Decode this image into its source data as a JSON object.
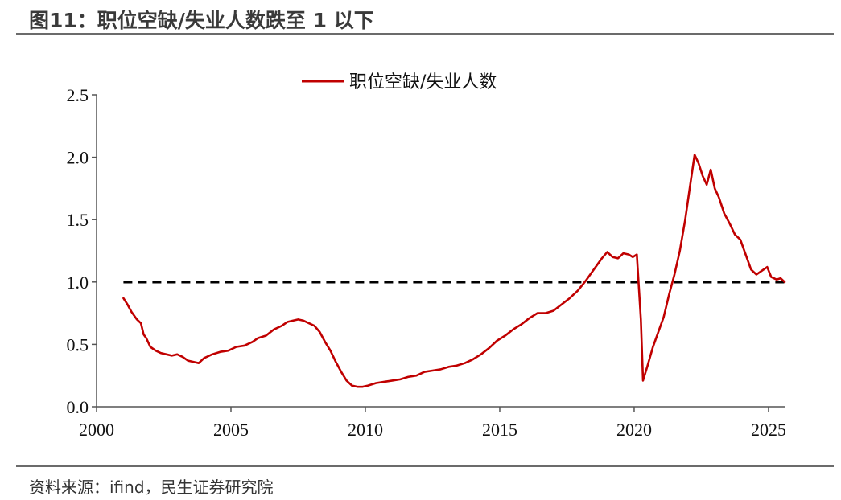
{
  "figure_title": "图11：职位空缺/失业人数跌至 1 以下",
  "source_note": "资料来源：ifind，民生证券研究院",
  "colors": {
    "series": "#c00000",
    "reference": "#000000",
    "axis": "#555555",
    "rule": "#6b6b6b"
  },
  "chart_data": {
    "type": "line",
    "title": "",
    "xlabel": "",
    "ylabel": "",
    "xlim": [
      2000,
      2025.6
    ],
    "ylim": [
      0.0,
      2.5
    ],
    "x_ticks": [
      2000,
      2005,
      2010,
      2015,
      2020,
      2025
    ],
    "y_ticks": [
      0.0,
      0.5,
      1.0,
      1.5,
      2.0,
      2.5
    ],
    "x_tick_labels": [
      "2000",
      "2005",
      "2010",
      "2015",
      "2020",
      "2025"
    ],
    "y_tick_labels": [
      "0.0",
      "0.5",
      "1.0",
      "1.5",
      "2.0",
      "2.5"
    ],
    "grid": false,
    "legend_position": "top-center",
    "reference_line": {
      "y": 1.0,
      "x_start": 2001.0,
      "x_end": 2025.6,
      "style": "dashed"
    },
    "series": [
      {
        "name": "职位空缺/失业人数",
        "points": [
          [
            2001.0,
            0.87
          ],
          [
            2001.15,
            0.82
          ],
          [
            2001.3,
            0.76
          ],
          [
            2001.5,
            0.7
          ],
          [
            2001.65,
            0.67
          ],
          [
            2001.75,
            0.58
          ],
          [
            2001.85,
            0.55
          ],
          [
            2002.0,
            0.48
          ],
          [
            2002.2,
            0.45
          ],
          [
            2002.4,
            0.43
          ],
          [
            2002.6,
            0.42
          ],
          [
            2002.8,
            0.41
          ],
          [
            2003.0,
            0.42
          ],
          [
            2003.2,
            0.4
          ],
          [
            2003.4,
            0.37
          ],
          [
            2003.6,
            0.36
          ],
          [
            2003.8,
            0.35
          ],
          [
            2004.0,
            0.39
          ],
          [
            2004.3,
            0.42
          ],
          [
            2004.6,
            0.44
          ],
          [
            2004.9,
            0.45
          ],
          [
            2005.2,
            0.48
          ],
          [
            2005.5,
            0.49
          ],
          [
            2005.8,
            0.52
          ],
          [
            2006.0,
            0.55
          ],
          [
            2006.3,
            0.57
          ],
          [
            2006.6,
            0.62
          ],
          [
            2006.9,
            0.65
          ],
          [
            2007.1,
            0.68
          ],
          [
            2007.3,
            0.69
          ],
          [
            2007.5,
            0.7
          ],
          [
            2007.7,
            0.69
          ],
          [
            2007.9,
            0.67
          ],
          [
            2008.1,
            0.65
          ],
          [
            2008.3,
            0.6
          ],
          [
            2008.5,
            0.52
          ],
          [
            2008.7,
            0.45
          ],
          [
            2008.9,
            0.36
          ],
          [
            2009.1,
            0.28
          ],
          [
            2009.3,
            0.21
          ],
          [
            2009.5,
            0.17
          ],
          [
            2009.7,
            0.16
          ],
          [
            2009.9,
            0.16
          ],
          [
            2010.1,
            0.17
          ],
          [
            2010.4,
            0.19
          ],
          [
            2010.7,
            0.2
          ],
          [
            2011.0,
            0.21
          ],
          [
            2011.3,
            0.22
          ],
          [
            2011.6,
            0.24
          ],
          [
            2011.9,
            0.25
          ],
          [
            2012.2,
            0.28
          ],
          [
            2012.5,
            0.29
          ],
          [
            2012.8,
            0.3
          ],
          [
            2013.1,
            0.32
          ],
          [
            2013.4,
            0.33
          ],
          [
            2013.7,
            0.35
          ],
          [
            2014.0,
            0.38
          ],
          [
            2014.3,
            0.42
          ],
          [
            2014.6,
            0.47
          ],
          [
            2014.9,
            0.53
          ],
          [
            2015.2,
            0.57
          ],
          [
            2015.5,
            0.62
          ],
          [
            2015.8,
            0.66
          ],
          [
            2016.1,
            0.71
          ],
          [
            2016.4,
            0.75
          ],
          [
            2016.7,
            0.75
          ],
          [
            2017.0,
            0.77
          ],
          [
            2017.3,
            0.82
          ],
          [
            2017.6,
            0.87
          ],
          [
            2017.9,
            0.93
          ],
          [
            2018.2,
            1.01
          ],
          [
            2018.5,
            1.1
          ],
          [
            2018.8,
            1.19
          ],
          [
            2019.0,
            1.24
          ],
          [
            2019.2,
            1.2
          ],
          [
            2019.4,
            1.19
          ],
          [
            2019.6,
            1.23
          ],
          [
            2019.8,
            1.22
          ],
          [
            2019.95,
            1.2
          ],
          [
            2020.1,
            1.22
          ],
          [
            2020.25,
            0.7
          ],
          [
            2020.33,
            0.21
          ],
          [
            2020.5,
            0.33
          ],
          [
            2020.7,
            0.48
          ],
          [
            2020.9,
            0.6
          ],
          [
            2021.1,
            0.72
          ],
          [
            2021.3,
            0.9
          ],
          [
            2021.5,
            1.06
          ],
          [
            2021.7,
            1.25
          ],
          [
            2021.9,
            1.5
          ],
          [
            2022.1,
            1.8
          ],
          [
            2022.25,
            2.02
          ],
          [
            2022.4,
            1.95
          ],
          [
            2022.55,
            1.85
          ],
          [
            2022.7,
            1.78
          ],
          [
            2022.85,
            1.9
          ],
          [
            2023.0,
            1.75
          ],
          [
            2023.15,
            1.68
          ],
          [
            2023.35,
            1.55
          ],
          [
            2023.55,
            1.47
          ],
          [
            2023.75,
            1.38
          ],
          [
            2023.95,
            1.34
          ],
          [
            2024.15,
            1.22
          ],
          [
            2024.35,
            1.1
          ],
          [
            2024.55,
            1.06
          ],
          [
            2024.75,
            1.09
          ],
          [
            2024.95,
            1.12
          ],
          [
            2025.1,
            1.04
          ],
          [
            2025.3,
            1.02
          ],
          [
            2025.45,
            1.03
          ],
          [
            2025.6,
            1.0
          ]
        ]
      }
    ]
  }
}
